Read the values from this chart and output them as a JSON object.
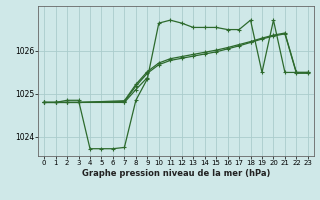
{
  "background_color": "#cfe8e8",
  "grid_color": "#aacccc",
  "line_color": "#2d6a2d",
  "xlabel": "Graphe pression niveau de la mer (hPa)",
  "xlim": [
    -0.5,
    23.5
  ],
  "ylim": [
    1023.55,
    1027.05
  ],
  "yticks": [
    1024,
    1025,
    1026
  ],
  "xticks": [
    0,
    1,
    2,
    3,
    4,
    5,
    6,
    7,
    8,
    9,
    10,
    11,
    12,
    13,
    14,
    15,
    16,
    17,
    18,
    19,
    20,
    21,
    22,
    23
  ],
  "s1_x": [
    0,
    1,
    2,
    3,
    4,
    5,
    6,
    7,
    8,
    9,
    10,
    11,
    12,
    13,
    14,
    15,
    16,
    17,
    18,
    19,
    20,
    21,
    22,
    23
  ],
  "s1_y": [
    1024.8,
    1024.8,
    1024.85,
    1024.85,
    1023.72,
    1023.72,
    1023.72,
    1023.75,
    1024.85,
    1025.35,
    1026.65,
    1026.72,
    1026.65,
    1026.55,
    1026.55,
    1026.55,
    1026.5,
    1026.5,
    1026.72,
    1025.5,
    1026.72,
    1025.5,
    1025.5,
    1025.5
  ],
  "s2_x": [
    0,
    1,
    2,
    3,
    7,
    8,
    9
  ],
  "s2_y": [
    1024.8,
    1024.8,
    1024.8,
    1024.8,
    1024.8,
    1025.1,
    1025.38
  ],
  "s3_x": [
    0,
    1,
    2,
    3,
    7,
    8,
    9,
    10,
    11,
    12,
    13,
    14,
    15,
    16,
    17,
    18,
    19,
    20,
    21,
    22,
    23
  ],
  "s3_y": [
    1024.8,
    1024.8,
    1024.8,
    1024.8,
    1024.82,
    1025.18,
    1025.48,
    1025.68,
    1025.78,
    1025.83,
    1025.88,
    1025.93,
    1025.98,
    1026.05,
    1026.12,
    1026.2,
    1026.28,
    1026.35,
    1026.4,
    1025.48,
    1025.48
  ],
  "s4_x": [
    0,
    1,
    2,
    3,
    7,
    8,
    9,
    10,
    11,
    12,
    13,
    14,
    15,
    16,
    17,
    18,
    19,
    20,
    21,
    22,
    23
  ],
  "s4_y": [
    1024.8,
    1024.8,
    1024.8,
    1024.8,
    1024.84,
    1025.22,
    1025.52,
    1025.72,
    1025.82,
    1025.87,
    1025.92,
    1025.97,
    1026.02,
    1026.08,
    1026.15,
    1026.22,
    1026.3,
    1026.37,
    1026.42,
    1025.5,
    1025.5
  ]
}
